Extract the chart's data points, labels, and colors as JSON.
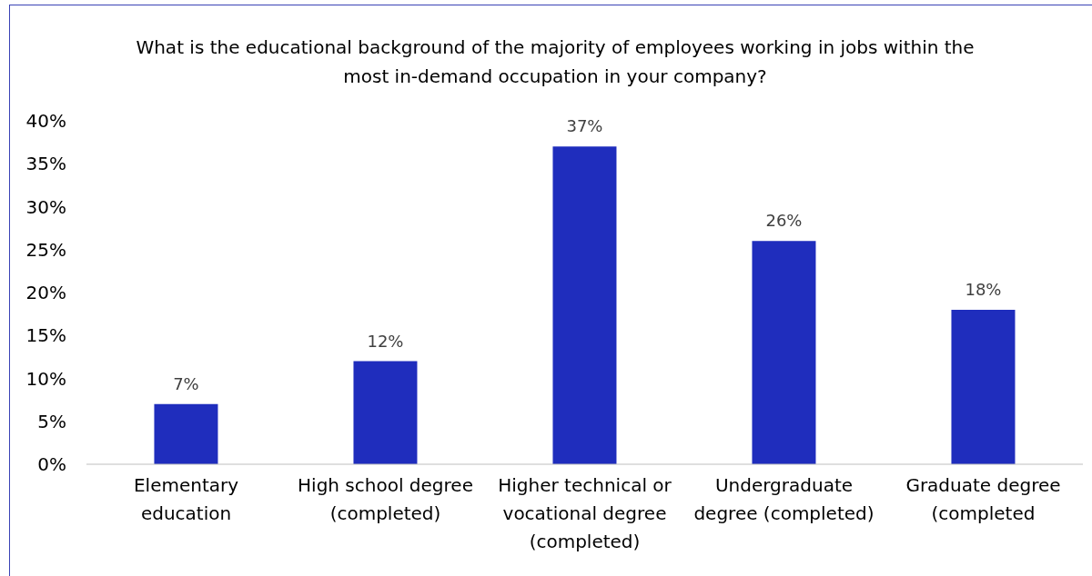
{
  "chart_data": {
    "type": "bar",
    "title": "What is the educational background of the majority of employees working in jobs within the most in-demand occupation in your company?",
    "categories": [
      "Elementary education",
      "High school degree (completed)",
      "Higher technical or vocational degree (completed)",
      "Undergraduate degree (completed)",
      "Graduate degree (completed"
    ],
    "values": [
      7,
      12,
      37,
      26,
      18
    ],
    "value_labels": [
      "7%",
      "12%",
      "37%",
      "26%",
      "18%"
    ],
    "color": "#1f2dbd",
    "ylim": [
      0,
      40
    ],
    "yticks": [
      {
        "value": 0,
        "label": "0%"
      },
      {
        "value": 5,
        "label": "5%"
      },
      {
        "value": 10,
        "label": "10%"
      },
      {
        "value": 15,
        "label": "15%"
      },
      {
        "value": 20,
        "label": "20%"
      },
      {
        "value": 25,
        "label": "25%"
      },
      {
        "value": 30,
        "label": "30%"
      },
      {
        "value": 35,
        "label": "35%"
      },
      {
        "value": 40,
        "label": "40%"
      }
    ],
    "grid": false,
    "legend": false
  }
}
